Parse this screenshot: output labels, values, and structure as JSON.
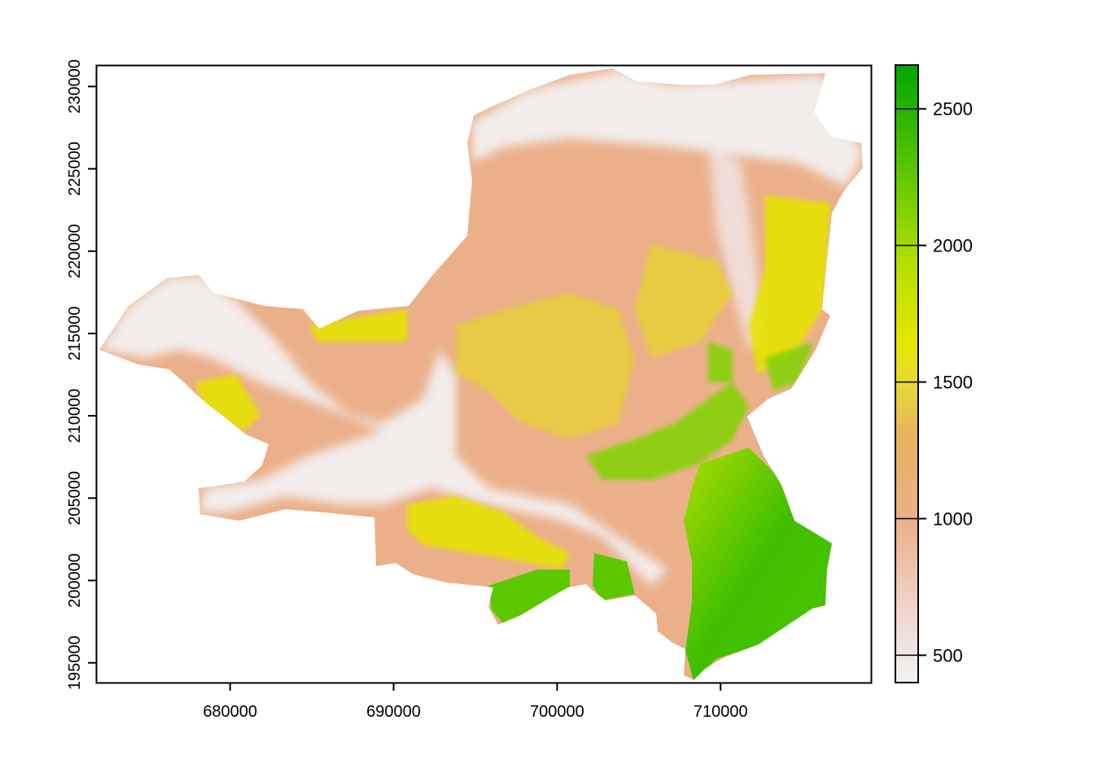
{
  "map": {
    "type": "raster-heatmap",
    "title": "",
    "xlabel": "",
    "ylabel": "",
    "x_range": [
      671800,
      719200
    ],
    "y_range": [
      193800,
      231300
    ],
    "x_ticks": [
      "680000",
      "690000",
      "700000",
      "710000"
    ],
    "x_tick_values": [
      680000,
      690000,
      700000,
      710000
    ],
    "y_ticks": [
      "195000",
      "200000",
      "205000",
      "210000",
      "215000",
      "220000",
      "225000",
      "230000"
    ],
    "y_tick_values": [
      195000,
      200000,
      205000,
      210000,
      215000,
      220000,
      225000,
      230000
    ],
    "legend": {
      "placement": "right",
      "range": [
        400,
        2660
      ],
      "ticks": [
        "500",
        "1000",
        "1500",
        "2000",
        "2500"
      ],
      "tick_values": [
        500,
        1000,
        1500,
        2000,
        2500
      ],
      "colors": [
        "#f2f2f2",
        "#eeccc4",
        "#ebb08a",
        "#e8b46a",
        "#e6d838",
        "#e6e600",
        "#c9e500",
        "#7fd400",
        "#3ebf00",
        "#00a600"
      ]
    }
  }
}
